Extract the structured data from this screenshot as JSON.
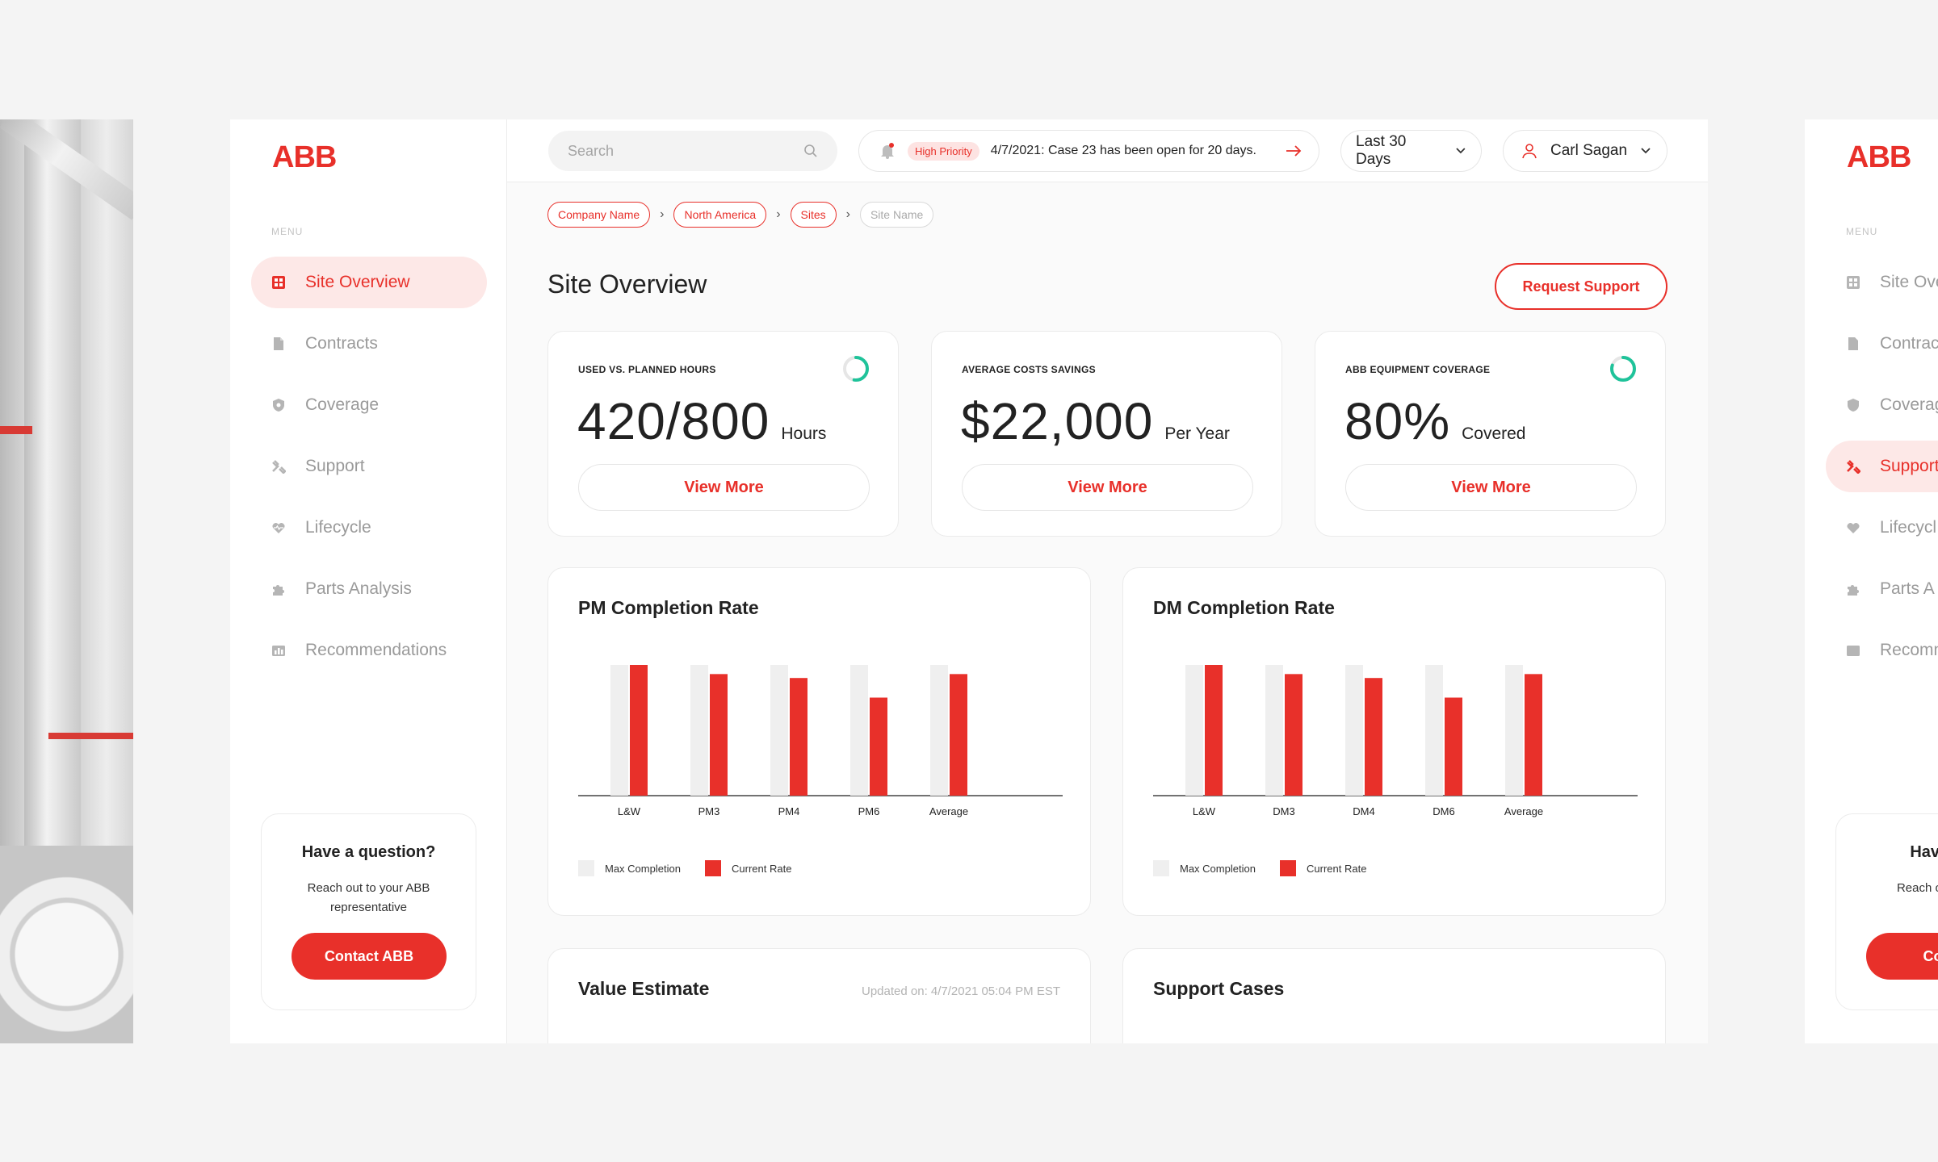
{
  "brand": {
    "logo": "ABB",
    "accent": "#e8302a",
    "accent_soft": "#fde8e7",
    "gauge": "#1fc39a"
  },
  "sidebar": {
    "menu_label": "MENU",
    "items": [
      {
        "label": "Site Overview",
        "icon": "grid-icon"
      },
      {
        "label": "Contracts",
        "icon": "document-icon"
      },
      {
        "label": "Coverage",
        "icon": "shield-icon"
      },
      {
        "label": "Support",
        "icon": "tools-icon"
      },
      {
        "label": "Lifecycle",
        "icon": "heart-pulse-icon"
      },
      {
        "label": "Parts Analysis",
        "icon": "puzzle-icon"
      },
      {
        "label": "Recommendations",
        "icon": "chart-board-icon"
      }
    ],
    "active_index": 0
  },
  "help": {
    "title": "Have a question?",
    "text": "Reach out to your ABB representative",
    "button": "Contact ABB"
  },
  "topbar": {
    "search_placeholder": "Search",
    "badge": "High Priority",
    "notification": "4/7/2021: Case 23 has been open for 20 days.",
    "range": "Last 30 Days",
    "user": "Carl Sagan"
  },
  "breadcrumb": [
    "Company Name",
    "North America",
    "Sites",
    "Site Name"
  ],
  "page": {
    "title": "Site Overview",
    "request_button": "Request Support"
  },
  "kpis": [
    {
      "label": "USED VS. PLANNED HOURS",
      "value": "420/800",
      "unit": "Hours",
      "button": "View More",
      "gauge_fraction": 0.525
    },
    {
      "label": "AVERAGE COSTS SAVINGS",
      "value": "$22,000",
      "unit": "Per Year",
      "button": "View More"
    },
    {
      "label": "ABB EQUIPMENT COVERAGE",
      "value": "80%",
      "unit": "Covered",
      "button": "View More",
      "gauge_fraction": 0.8
    }
  ],
  "chart_data": [
    {
      "type": "bar",
      "title": "PM Completion Rate",
      "categories": [
        "L&W",
        "PM3",
        "PM4",
        "PM6",
        "Average"
      ],
      "series": [
        {
          "name": "Max Completion",
          "values": [
            100,
            100,
            100,
            100,
            100
          ],
          "color": "#efefef"
        },
        {
          "name": "Current Rate",
          "values": [
            100,
            93,
            90,
            75,
            93
          ],
          "color": "#e8302a"
        }
      ],
      "ylim": [
        0,
        100
      ],
      "legend": "bottom-left"
    },
    {
      "type": "bar",
      "title": "DM Completion Rate",
      "categories": [
        "L&W",
        "DM3",
        "DM4",
        "DM6",
        "Average"
      ],
      "series": [
        {
          "name": "Max Completion",
          "values": [
            100,
            100,
            100,
            100,
            100
          ],
          "color": "#efefef"
        },
        {
          "name": "Current Rate",
          "values": [
            100,
            93,
            90,
            75,
            93
          ],
          "color": "#e8302a"
        }
      ],
      "ylim": [
        0,
        100
      ],
      "legend": "bottom-left"
    }
  ],
  "value_estimate": {
    "title": "Value Estimate",
    "updated": "Updated on: 4/7/2021 05:04 PM EST"
  },
  "support_cases": {
    "title": "Support Cases"
  },
  "preview": {
    "logo": "ABB",
    "menu_label": "MENU",
    "items": [
      "Site Ove",
      "Contrac",
      "Coverag",
      "Support",
      "Lifecycl",
      "Parts A",
      "Recomm"
    ],
    "active_index": 3,
    "help_title": "Have a q",
    "help_text": "Reach out repres",
    "help_button": "Conta"
  }
}
